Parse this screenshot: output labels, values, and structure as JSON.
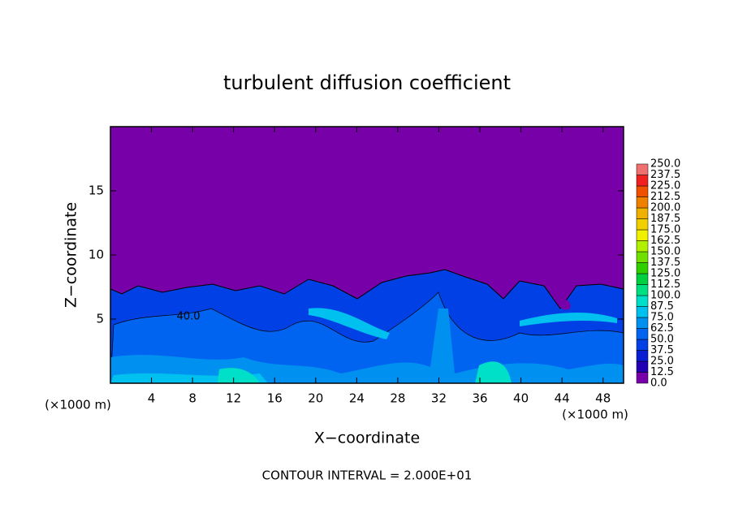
{
  "chart_data": {
    "type": "contour",
    "title": "turbulent diffusion coefficient",
    "x_label": "X−coordinate",
    "y_label": "Z−coordinate",
    "x_unit": "(×1000 m)",
    "annotation": "CONTOUR INTERVAL = 2.000E+01",
    "xlim": [
      0,
      50
    ],
    "ylim": [
      0,
      20
    ],
    "xticks": [
      4,
      8,
      12,
      16,
      20,
      24,
      28,
      32,
      36,
      40,
      44,
      48
    ],
    "yticks": [
      5,
      10,
      15
    ],
    "contour_labels": [
      {
        "value": 40,
        "label": "40.0",
        "x": 7.6,
        "y": 5.2
      }
    ],
    "colorbar": {
      "levels": [
        {
          "value": 0,
          "label": "0.0"
        },
        {
          "value": 12.5,
          "label": "12.5"
        },
        {
          "value": 25,
          "label": "25.0"
        },
        {
          "value": 37.5,
          "label": "37.5"
        },
        {
          "value": 50,
          "label": "50.0"
        },
        {
          "value": 62.5,
          "label": "62.5"
        },
        {
          "value": 75,
          "label": "75.0"
        },
        {
          "value": 87.5,
          "label": "87.5"
        },
        {
          "value": 100,
          "label": "100.0"
        },
        {
          "value": 112.5,
          "label": "112.5"
        },
        {
          "value": 125,
          "label": "125.0"
        },
        {
          "value": 137.5,
          "label": "137.5"
        },
        {
          "value": 150,
          "label": "150.0"
        },
        {
          "value": 162.5,
          "label": "162.5"
        },
        {
          "value": 175,
          "label": "175.0"
        },
        {
          "value": 187.5,
          "label": "187.5"
        },
        {
          "value": 200,
          "label": "200.0"
        },
        {
          "value": 212.5,
          "label": "212.5"
        },
        {
          "value": 225,
          "label": "225.0"
        },
        {
          "value": 237.5,
          "label": "237.5"
        },
        {
          "value": 250,
          "label": "250.0"
        }
      ],
      "colors": [
        "#7800a8",
        "#2400b4",
        "#0a1ed2",
        "#0040e4",
        "#0064f0",
        "#0090f0",
        "#00c0f0",
        "#00e0c8",
        "#00e080",
        "#00d040",
        "#30d000",
        "#70e000",
        "#b0f000",
        "#f0f000",
        "#f0d000",
        "#f0b000",
        "#f08000",
        "#f05000",
        "#f02020",
        "#f07070"
      ]
    }
  }
}
